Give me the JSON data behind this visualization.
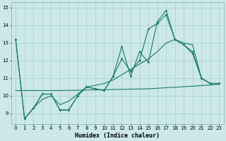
{
  "xlabel": "Humidex (Indice chaleur)",
  "background_color": "#cce8e8",
  "grid_color": "#aacece",
  "line_color": "#1a7a6e",
  "x_ticks": [
    0,
    1,
    2,
    3,
    4,
    5,
    6,
    7,
    8,
    9,
    10,
    11,
    12,
    13,
    14,
    15,
    16,
    17,
    18,
    19,
    20,
    21,
    22,
    23
  ],
  "y_ticks": [
    9,
    10,
    11,
    12,
    13,
    14,
    15
  ],
  "ylim": [
    8.4,
    15.3
  ],
  "xlim": [
    -0.5,
    23.5
  ],
  "series_spiky_x": [
    0,
    1,
    2,
    3,
    4,
    5,
    6,
    7,
    8,
    9,
    10,
    11,
    12,
    13,
    14,
    15,
    16,
    17,
    18,
    19,
    20,
    21,
    22,
    23
  ],
  "series_spiky_y": [
    13.2,
    8.7,
    9.3,
    10.1,
    10.1,
    9.2,
    9.2,
    10.0,
    10.5,
    10.4,
    10.3,
    11.1,
    12.8,
    11.1,
    12.5,
    11.9,
    14.2,
    14.85,
    13.2,
    12.9,
    12.4,
    11.0,
    10.7,
    10.7
  ],
  "series_smooth_x": [
    0,
    1,
    2,
    3,
    4,
    5,
    6,
    7,
    8,
    9,
    10,
    11,
    12,
    13,
    14,
    15,
    16,
    17,
    18,
    19,
    20,
    21,
    22,
    23
  ],
  "series_smooth_y": [
    13.2,
    8.7,
    9.3,
    10.1,
    10.1,
    9.2,
    9.2,
    10.0,
    10.5,
    10.4,
    10.3,
    11.1,
    12.1,
    11.4,
    12.0,
    13.8,
    14.1,
    14.6,
    13.2,
    12.9,
    12.5,
    11.0,
    10.7,
    10.7
  ],
  "series_flat_x": [
    0,
    5,
    10,
    15,
    20,
    23
  ],
  "series_flat_y": [
    10.3,
    10.3,
    10.35,
    10.4,
    10.55,
    10.65
  ],
  "series_diag_x": [
    1,
    2,
    3,
    4,
    5,
    6,
    7,
    8,
    9,
    10,
    11,
    12,
    13,
    14,
    15,
    16,
    17,
    18,
    19,
    20,
    21,
    22,
    23
  ],
  "series_diag_y": [
    8.7,
    9.3,
    9.8,
    10.0,
    9.5,
    9.7,
    10.1,
    10.5,
    10.6,
    10.7,
    10.9,
    11.2,
    11.5,
    11.8,
    12.1,
    12.5,
    13.0,
    13.2,
    13.0,
    12.9,
    11.0,
    10.7,
    10.7
  ]
}
